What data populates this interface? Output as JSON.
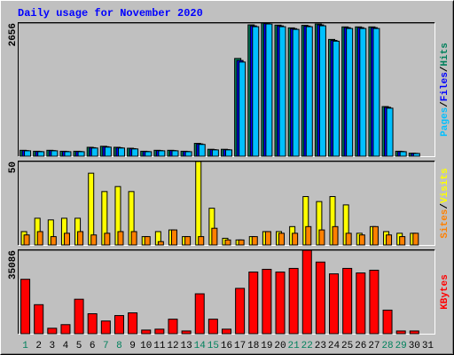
{
  "chart_data": [
    {
      "type": "bar",
      "title": "Daily usage for November 2020",
      "legend_separator": "/",
      "ylim": [
        0,
        2656
      ],
      "yticks": [
        2656
      ],
      "series": [
        {
          "name": "Hits",
          "color": "#00805c",
          "values": [
            118,
            99,
            118,
            99,
            99,
            178,
            198,
            178,
            159,
            99,
            118,
            118,
            99,
            256,
            138,
            138,
            1950,
            2620,
            2656,
            2615,
            2560,
            2610,
            2640,
            2330,
            2580,
            2580,
            2580,
            990,
            99,
            60,
            null
          ]
        },
        {
          "name": "Files",
          "color": "#0000ff",
          "values": [
            112,
            94,
            112,
            94,
            94,
            170,
            189,
            170,
            151,
            94,
            112,
            112,
            94,
            245,
            131,
            131,
            1910,
            2600,
            2645,
            2600,
            2545,
            2597,
            2620,
            2310,
            2565,
            2565,
            2565,
            975,
            94,
            57,
            null
          ]
        },
        {
          "name": "Pages",
          "color": "#00c0ff",
          "values": [
            108,
            90,
            108,
            90,
            90,
            163,
            181,
            163,
            145,
            90,
            108,
            108,
            90,
            235,
            126,
            126,
            1879,
            2584,
            2638,
            2584,
            2530,
            2584,
            2602,
            2295,
            2548,
            2548,
            2548,
            958,
            90,
            54,
            null
          ]
        }
      ]
    },
    {
      "type": "bar",
      "legend_separator": "/",
      "ylim": [
        0,
        50
      ],
      "yticks": [
        50
      ],
      "series": [
        {
          "name": "Visits",
          "color": "#ffff00",
          "values": [
            8,
            16,
            15,
            16,
            16,
            43,
            32,
            35,
            32,
            5,
            8,
            9,
            5,
            50,
            22,
            4,
            3,
            5,
            8,
            8,
            11,
            29,
            26,
            29,
            24,
            7,
            11,
            8,
            7,
            7,
            null
          ]
        },
        {
          "name": "Sites",
          "color": "#ff8000",
          "values": [
            6,
            8,
            5,
            7,
            8,
            6,
            7,
            8,
            8,
            5,
            2,
            9,
            5,
            5,
            10,
            3,
            3,
            5,
            8,
            7,
            7,
            11,
            9,
            11,
            7,
            6,
            11,
            6,
            5,
            7,
            null
          ]
        }
      ]
    },
    {
      "type": "bar",
      "categories": [
        "1",
        "2",
        "3",
        "4",
        "5",
        "6",
        "7",
        "8",
        "9",
        "10",
        "11",
        "12",
        "13",
        "14",
        "15",
        "16",
        "17",
        "18",
        "19",
        "20",
        "21",
        "22",
        "23",
        "24",
        "25",
        "26",
        "27",
        "28",
        "29",
        "30",
        "31"
      ],
      "category_colors": [
        "#00805c",
        "#000000",
        "#000000",
        "#000000",
        "#000000",
        "#000000",
        "#00805c",
        "#00805c",
        "#000000",
        "#000000",
        "#000000",
        "#000000",
        "#000000",
        "#00805c",
        "#00805c",
        "#000000",
        "#000000",
        "#000000",
        "#000000",
        "#000000",
        "#00805c",
        "#00805c",
        "#000000",
        "#000000",
        "#000000",
        "#000000",
        "#000000",
        "#00805c",
        "#00805c",
        "#000000",
        "#000000"
      ],
      "ylim": [
        0,
        35086
      ],
      "yticks": [
        35086
      ],
      "series": [
        {
          "name": "KBytes",
          "color": "#ff0000",
          "values": [
            22884,
            12205,
            2288,
            3814,
            14493,
            8391,
            5340,
            7628,
            8772,
            1526,
            1907,
            6102,
            1144,
            16782,
            6102,
            1907,
            19070,
            25935,
            27079,
            25935,
            27461,
            35086,
            30130,
            25172,
            27461,
            25554,
            26698,
            9916,
            1144,
            1144,
            null
          ]
        }
      ]
    }
  ]
}
